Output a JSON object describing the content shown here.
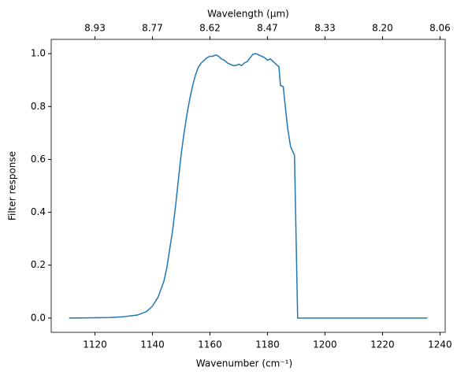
{
  "chart_data": {
    "type": "line",
    "xlabel": "Wavenumber (cm⁻¹)",
    "ylabel": "Filter response",
    "x2label": "Wavelength (μm)",
    "x": [
      1111,
      1120,
      1125,
      1130,
      1135,
      1138,
      1140,
      1142,
      1144,
      1145,
      1146,
      1147,
      1148,
      1149,
      1150,
      1151,
      1152,
      1153,
      1154,
      1155,
      1156,
      1157,
      1158,
      1159,
      1160,
      1161,
      1162,
      1163,
      1164,
      1165,
      1166,
      1167,
      1168,
      1169,
      1170,
      1171,
      1172,
      1173,
      1174,
      1175,
      1176,
      1177,
      1178,
      1179,
      1180,
      1181,
      1182,
      1183,
      1184,
      1184.5,
      1185.5,
      1186,
      1187,
      1188,
      1189.4,
      1190.5,
      1235.6
    ],
    "series": [
      {
        "color": "#1f77b4",
        "values": [
          0.0,
          0.001,
          0.002,
          0.005,
          0.012,
          0.025,
          0.045,
          0.08,
          0.14,
          0.19,
          0.26,
          0.33,
          0.42,
          0.52,
          0.62,
          0.7,
          0.77,
          0.83,
          0.88,
          0.92,
          0.95,
          0.965,
          0.975,
          0.985,
          0.99,
          0.99,
          0.995,
          0.99,
          0.98,
          0.975,
          0.965,
          0.96,
          0.955,
          0.955,
          0.96,
          0.955,
          0.965,
          0.97,
          0.985,
          0.998,
          1.0,
          0.995,
          0.99,
          0.985,
          0.975,
          0.98,
          0.97,
          0.96,
          0.95,
          0.88,
          0.875,
          0.82,
          0.72,
          0.65,
          0.615,
          0.0,
          0.0
        ]
      }
    ],
    "xlim": [
      1104.8,
      1241.8
    ],
    "ylim": [
      -0.054,
      1.054
    ],
    "xticks": [
      1120,
      1140,
      1160,
      1180,
      1200,
      1220,
      1240
    ],
    "yticks": [
      {
        "value": 0,
        "label": "0.0"
      },
      0.2,
      0.4,
      0.6,
      0.8,
      {
        "value": 1,
        "label": "1.0"
      }
    ],
    "x2ticks": [
      {
        "value": 1120,
        "label": "8.93"
      },
      {
        "value": 1140,
        "label": "8.77"
      },
      {
        "value": 1160,
        "label": "8.62"
      },
      {
        "value": 1180,
        "label": "8.47"
      },
      {
        "value": 1200,
        "label": "8.33"
      },
      {
        "value": 1220,
        "label": "8.20"
      },
      {
        "value": 1240,
        "label": "8.06"
      }
    ]
  }
}
